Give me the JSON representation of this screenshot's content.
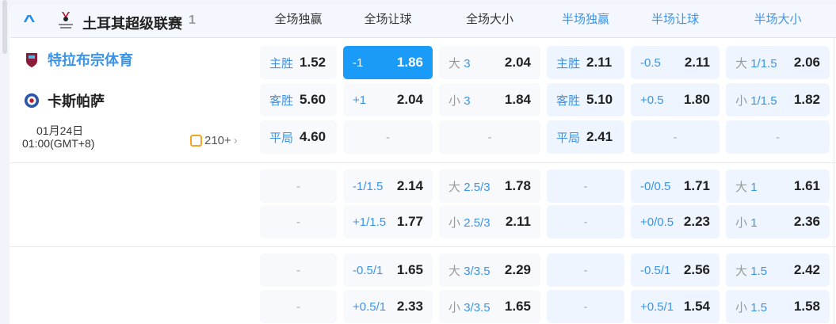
{
  "league": {
    "name": "土耳其超级联赛",
    "count": "1"
  },
  "columns": [
    {
      "label": "全场独赢",
      "half": false
    },
    {
      "label": "全场让球",
      "half": false
    },
    {
      "label": "全场大小",
      "half": false
    },
    {
      "label": "半场独赢",
      "half": true
    },
    {
      "label": "半场让球",
      "half": true
    },
    {
      "label": "半场大小",
      "half": true
    }
  ],
  "match": {
    "home": "特拉布宗体育",
    "away": "卡斯帕萨",
    "date": "01月24日",
    "time": "01:00(GMT+8)",
    "more_count": "210+",
    "home_color": "#3b94e8"
  },
  "rows": [
    [
      {
        "lab": "主胜",
        "val": "1.52"
      },
      {
        "lab": "-1",
        "val": "1.86",
        "selected": true
      },
      {
        "pre": "大",
        "lab": "3",
        "val": "2.04"
      },
      {
        "lab": "主胜",
        "val": "2.11"
      },
      {
        "lab": "-0.5",
        "val": "2.11"
      },
      {
        "pre": "大",
        "lab": "1/1.5",
        "val": "2.06"
      }
    ],
    [
      {
        "lab": "客胜",
        "val": "5.60"
      },
      {
        "lab": "+1",
        "val": "2.04"
      },
      {
        "pre": "小",
        "lab": "3",
        "val": "1.84"
      },
      {
        "lab": "客胜",
        "val": "5.10"
      },
      {
        "lab": "+0.5",
        "val": "1.80"
      },
      {
        "pre": "小",
        "lab": "1/1.5",
        "val": "1.82"
      }
    ],
    [
      {
        "lab": "平局",
        "val": "4.60"
      },
      {
        "dash": "-"
      },
      {
        "dash": "-"
      },
      {
        "lab": "平局",
        "val": "2.41"
      },
      {
        "dash": "-"
      },
      {
        "dash": "-"
      }
    ],
    [
      {
        "dash": "-"
      },
      {
        "lab": "-1/1.5",
        "val": "2.14"
      },
      {
        "pre": "大",
        "lab": "2.5/3",
        "val": "1.78"
      },
      {
        "dash": "-"
      },
      {
        "lab": "-0/0.5",
        "val": "1.71"
      },
      {
        "pre": "大",
        "lab": "1",
        "val": "1.61"
      }
    ],
    [
      {
        "dash": "-"
      },
      {
        "lab": "+1/1.5",
        "val": "1.77"
      },
      {
        "pre": "小",
        "lab": "2.5/3",
        "val": "2.11"
      },
      {
        "dash": "-"
      },
      {
        "lab": "+0/0.5",
        "val": "2.23"
      },
      {
        "pre": "小",
        "lab": "1",
        "val": "2.36"
      }
    ],
    [
      {
        "dash": "-"
      },
      {
        "lab": "-0.5/1",
        "val": "1.65"
      },
      {
        "pre": "大",
        "lab": "3/3.5",
        "val": "2.29"
      },
      {
        "dash": "-"
      },
      {
        "lab": "-0.5/1",
        "val": "2.56"
      },
      {
        "pre": "大",
        "lab": "1.5",
        "val": "2.42"
      }
    ],
    [
      {
        "dash": "-"
      },
      {
        "lab": "+0.5/1",
        "val": "2.33"
      },
      {
        "pre": "小",
        "lab": "3/3.5",
        "val": "1.65"
      },
      {
        "dash": "-"
      },
      {
        "lab": "+0.5/1",
        "val": "1.54"
      },
      {
        "pre": "小",
        "lab": "1.5",
        "val": "1.58"
      }
    ]
  ],
  "colors": {
    "accent": "#1a9bf7",
    "label_blue": "#3b94e8"
  }
}
